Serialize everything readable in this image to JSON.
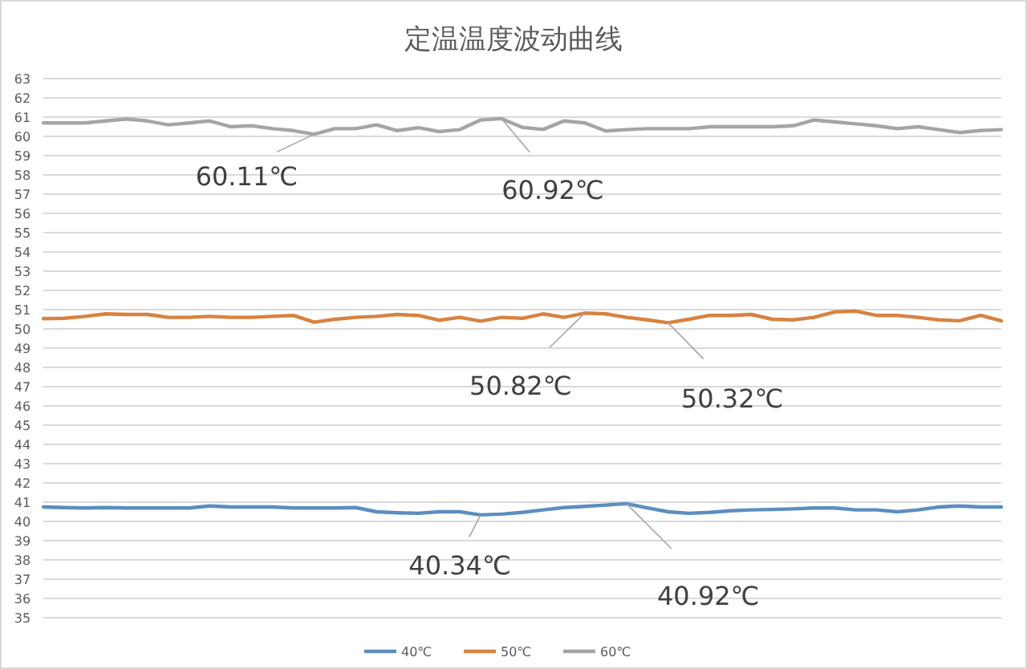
{
  "chart_data": {
    "type": "line",
    "title": "定温温度波动曲线",
    "categories": [
      null,
      null,
      null,
      null,
      null,
      null,
      null,
      null,
      null,
      null,
      null,
      null,
      null,
      null,
      null,
      null,
      null,
      null,
      null,
      null,
      null,
      null,
      null,
      null,
      null,
      null,
      null,
      null,
      null,
      null,
      null,
      null,
      null,
      null,
      null,
      null,
      null,
      null,
      null,
      null,
      null,
      null,
      null,
      null,
      null,
      null,
      null
    ],
    "series": [
      {
        "name": "40℃",
        "color": "#5b8ec0",
        "values": [
          40.75,
          40.72,
          40.7,
          40.72,
          40.7,
          40.7,
          40.7,
          40.7,
          40.8,
          40.75,
          40.75,
          40.75,
          40.7,
          40.7,
          40.7,
          40.72,
          40.5,
          40.45,
          40.42,
          40.5,
          40.5,
          40.34,
          40.38,
          40.47,
          40.6,
          40.72,
          40.78,
          40.85,
          40.92,
          40.7,
          40.5,
          40.42,
          40.47,
          40.55,
          40.6,
          40.62,
          40.65,
          40.7,
          40.7,
          40.6,
          40.6,
          40.5,
          40.6,
          40.75,
          40.8,
          40.75,
          40.75
        ]
      },
      {
        "name": "50℃",
        "color": "#d8823f",
        "values": [
          50.53,
          50.55,
          50.65,
          50.78,
          50.75,
          50.75,
          50.6,
          50.6,
          50.65,
          50.6,
          50.6,
          50.65,
          50.7,
          50.35,
          50.5,
          50.6,
          50.65,
          50.75,
          50.7,
          50.45,
          50.6,
          50.4,
          50.6,
          50.55,
          50.78,
          50.6,
          50.82,
          50.78,
          50.6,
          50.47,
          50.32,
          50.5,
          50.7,
          50.7,
          50.75,
          50.5,
          50.47,
          50.6,
          50.88,
          50.92,
          50.7,
          50.7,
          50.6,
          50.47,
          50.42,
          50.7,
          50.42
        ]
      },
      {
        "name": "60℃",
        "color": "#a5a5a5",
        "values": [
          60.7,
          60.7,
          60.7,
          60.8,
          60.9,
          60.8,
          60.6,
          60.7,
          60.8,
          60.5,
          60.55,
          60.4,
          60.3,
          60.11,
          60.4,
          60.4,
          60.6,
          60.3,
          60.45,
          60.25,
          60.35,
          60.85,
          60.92,
          60.47,
          60.36,
          60.8,
          60.7,
          60.28,
          60.35,
          60.4,
          60.4,
          60.4,
          60.5,
          60.5,
          60.5,
          60.5,
          60.55,
          60.85,
          60.75,
          60.65,
          60.55,
          60.4,
          60.5,
          60.35,
          60.2,
          60.3,
          60.35
        ]
      }
    ],
    "ylim": [
      35,
      63
    ],
    "yticks": [
      35,
      36,
      37,
      38,
      39,
      40,
      41,
      42,
      43,
      44,
      45,
      46,
      47,
      48,
      49,
      50,
      51,
      52,
      53,
      54,
      55,
      56,
      57,
      58,
      59,
      60,
      61,
      62,
      63
    ],
    "grid": "y",
    "legend": "bottom",
    "line_style": "solid",
    "annotations": [
      {
        "text": "60.11℃",
        "y": 60.11
      },
      {
        "text": "60.92℃",
        "y": 60.92
      },
      {
        "text": "50.82℃",
        "y": 50.82
      },
      {
        "text": "50.32℃",
        "y": 50.32
      },
      {
        "text": "40.34℃",
        "y": 40.34
      },
      {
        "text": "40.92℃",
        "y": 40.92
      }
    ]
  }
}
